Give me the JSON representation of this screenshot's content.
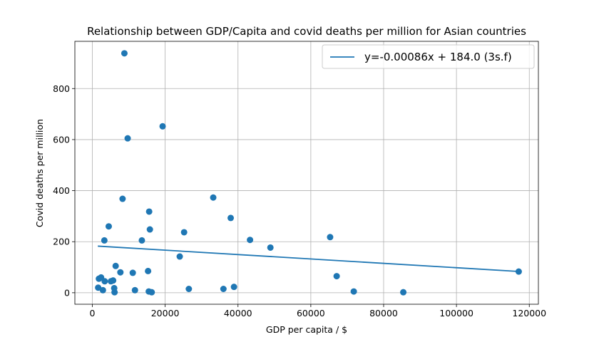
{
  "chart_data": {
    "type": "scatter",
    "title": "Relationship between GDP/Capita and covid deaths per million for Asian countries",
    "xlabel": "GDP per capita / $",
    "ylabel": "Covid deaths per million",
    "xlim": [
      -4800,
      122500
    ],
    "ylim": [
      -45,
      985
    ],
    "xticks": [
      0,
      20000,
      40000,
      60000,
      80000,
      100000,
      120000
    ],
    "yticks": [
      0,
      200,
      400,
      600,
      800
    ],
    "grid": true,
    "legend_position": "top-right",
    "point_color": "#1f77b4",
    "line_color": "#1f77b4",
    "points": [
      {
        "x": 1600,
        "y": 20
      },
      {
        "x": 1800,
        "y": 55
      },
      {
        "x": 2400,
        "y": 60
      },
      {
        "x": 2900,
        "y": 10
      },
      {
        "x": 3300,
        "y": 205
      },
      {
        "x": 3400,
        "y": 45
      },
      {
        "x": 4500,
        "y": 260
      },
      {
        "x": 5100,
        "y": 45
      },
      {
        "x": 5700,
        "y": 48
      },
      {
        "x": 6000,
        "y": 18
      },
      {
        "x": 6100,
        "y": 2
      },
      {
        "x": 6400,
        "y": 105
      },
      {
        "x": 7700,
        "y": 80
      },
      {
        "x": 8300,
        "y": 368
      },
      {
        "x": 8800,
        "y": 938
      },
      {
        "x": 9700,
        "y": 605
      },
      {
        "x": 11100,
        "y": 78
      },
      {
        "x": 11700,
        "y": 10
      },
      {
        "x": 13600,
        "y": 205
      },
      {
        "x": 15300,
        "y": 85
      },
      {
        "x": 15500,
        "y": 5
      },
      {
        "x": 15600,
        "y": 318
      },
      {
        "x": 15800,
        "y": 248
      },
      {
        "x": 16300,
        "y": 2
      },
      {
        "x": 19300,
        "y": 652
      },
      {
        "x": 24000,
        "y": 142
      },
      {
        "x": 25200,
        "y": 237
      },
      {
        "x": 26500,
        "y": 15
      },
      {
        "x": 33200,
        "y": 373
      },
      {
        "x": 36000,
        "y": 15
      },
      {
        "x": 38000,
        "y": 293
      },
      {
        "x": 38900,
        "y": 23
      },
      {
        "x": 43300,
        "y": 207
      },
      {
        "x": 48900,
        "y": 177
      },
      {
        "x": 65300,
        "y": 218
      },
      {
        "x": 67100,
        "y": 65
      },
      {
        "x": 71800,
        "y": 5
      },
      {
        "x": 85400,
        "y": 2
      },
      {
        "x": 117100,
        "y": 83
      }
    ],
    "fit": {
      "label": "y=-0.00086x + 184.0 (3s.f)",
      "slope": -0.00086,
      "intercept": 184.0,
      "x_range": [
        1500,
        117100
      ]
    }
  }
}
